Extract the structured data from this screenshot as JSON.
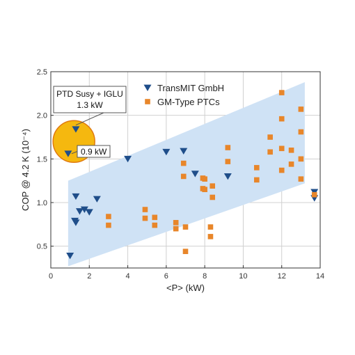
{
  "chart_data": {
    "type": "scatter",
    "xlabel": "<P> (kW)",
    "ylabel": "COP @ 4.2 K (10⁻⁴)",
    "xlim": [
      0,
      14
    ],
    "ylim": [
      0.25,
      2.5
    ],
    "x_ticks": [
      0,
      2,
      4,
      6,
      8,
      10,
      12,
      14
    ],
    "y_ticks": [
      0.5,
      1.0,
      1.5,
      2.0,
      2.5
    ],
    "x_tick_labels": [
      "0",
      "2",
      "4",
      "6",
      "8",
      "10",
      "12",
      "14"
    ],
    "y_tick_labels": [
      "0.5",
      "1.0",
      "1.5",
      "2.0",
      "2.5"
    ],
    "grid": true,
    "legend_position": "top-right",
    "band": {
      "color": "#cfe2f5",
      "polygon": [
        [
          0.9,
          1.25
        ],
        [
          13.2,
          2.38
        ],
        [
          13.2,
          1.22
        ],
        [
          0.9,
          0.27
        ]
      ]
    },
    "series": [
      {
        "name": "TransMIT GmbH",
        "marker": "triangle-down",
        "color": "#1f4e8a",
        "points": [
          [
            1.0,
            0.39
          ],
          [
            1.25,
            0.79
          ],
          [
            1.3,
            0.77
          ],
          [
            1.3,
            1.07
          ],
          [
            1.5,
            0.9
          ],
          [
            1.75,
            0.92
          ],
          [
            2.0,
            0.89
          ],
          [
            2.4,
            1.04
          ],
          [
            4.0,
            1.5
          ],
          [
            6.0,
            1.58
          ],
          [
            6.9,
            1.59
          ],
          [
            7.5,
            1.33
          ],
          [
            9.2,
            1.3
          ],
          [
            13.7,
            1.12
          ],
          [
            13.7,
            1.05
          ],
          [
            1.3,
            1.84
          ],
          [
            0.9,
            1.56
          ]
        ]
      },
      {
        "name": "GM-Type PTCs",
        "marker": "square",
        "color": "#e8862a",
        "points": [
          [
            3.0,
            0.84
          ],
          [
            3.0,
            0.74
          ],
          [
            4.9,
            0.92
          ],
          [
            4.9,
            0.82
          ],
          [
            5.4,
            0.83
          ],
          [
            5.4,
            0.74
          ],
          [
            6.5,
            0.77
          ],
          [
            6.5,
            0.7
          ],
          [
            6.9,
            1.45
          ],
          [
            6.9,
            1.3
          ],
          [
            7.0,
            0.72
          ],
          [
            7.0,
            0.44
          ],
          [
            7.9,
            1.28
          ],
          [
            7.9,
            1.16
          ],
          [
            8.0,
            1.27
          ],
          [
            8.0,
            1.15
          ],
          [
            8.3,
            0.72
          ],
          [
            8.3,
            0.61
          ],
          [
            8.4,
            1.19
          ],
          [
            8.4,
            1.06
          ],
          [
            9.2,
            1.63
          ],
          [
            9.2,
            1.47
          ],
          [
            10.7,
            1.4
          ],
          [
            10.7,
            1.26
          ],
          [
            11.4,
            1.75
          ],
          [
            11.4,
            1.58
          ],
          [
            12.0,
            2.26
          ],
          [
            12.0,
            1.96
          ],
          [
            12.0,
            1.62
          ],
          [
            12.0,
            1.37
          ],
          [
            12.5,
            1.6
          ],
          [
            12.5,
            1.44
          ],
          [
            13.0,
            2.07
          ],
          [
            13.0,
            1.81
          ],
          [
            13.0,
            1.5
          ],
          [
            13.0,
            1.27
          ],
          [
            13.7,
            1.09
          ]
        ]
      }
    ],
    "annotations": {
      "circle": {
        "center": [
          1.2,
          1.7
        ],
        "color": "#f5b80f",
        "edge_color": "#e07a10"
      },
      "box_label_lines": [
        "PTD Susy + IGLU",
        "1.3 kW"
      ],
      "box_points_to": [
        1.3,
        1.84
      ],
      "small_label": "0.9 kW",
      "small_points_to": [
        0.9,
        1.56
      ]
    }
  }
}
